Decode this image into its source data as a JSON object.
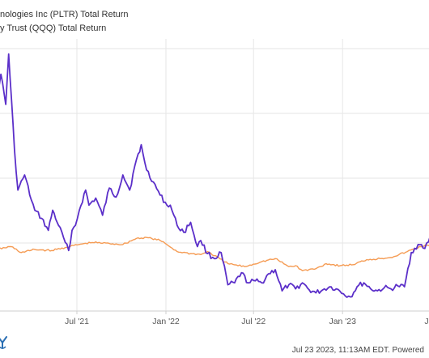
{
  "legend": [
    {
      "text": "nologies Inc (PLTR) Total Return",
      "color": "#5b2fc9"
    },
    {
      "text": "y Trust (QQQ) Total Return",
      "color": "#f59b53"
    }
  ],
  "footer": {
    "text": "Jul 23 2023, 11:13AM EDT. Powered"
  },
  "chart_data": {
    "type": "line",
    "title": "",
    "xlabel": "",
    "ylabel": "",
    "x_ticks": [
      "Jul '21",
      "Jan '22",
      "Jul '22",
      "Jan '23",
      "Jul"
    ],
    "grid": true,
    "legend_placement": "top-left",
    "series": [
      {
        "name": "nologies Inc (PLTR) Total Return",
        "color": "#5b2fc9",
        "x": [
          "2021-01-04",
          "2021-01-25",
          "2021-02-04",
          "2021-02-10",
          "2021-02-22",
          "2021-03-01",
          "2021-03-15",
          "2021-03-29",
          "2021-04-05",
          "2021-04-19",
          "2021-05-03",
          "2021-05-12",
          "2021-05-24",
          "2021-06-07",
          "2021-06-14",
          "2021-06-21",
          "2021-06-28",
          "2021-07-06",
          "2021-07-19",
          "2021-07-26",
          "2021-08-09",
          "2021-08-23",
          "2021-09-06",
          "2021-09-20",
          "2021-10-04",
          "2021-10-18",
          "2021-11-01",
          "2021-11-08",
          "2021-11-11",
          "2021-11-22",
          "2021-12-06",
          "2021-12-20",
          "2022-01-03",
          "2022-01-10",
          "2022-01-24",
          "2022-02-07",
          "2022-02-21",
          "2022-03-07",
          "2022-03-14",
          "2022-03-28",
          "2022-04-11",
          "2022-04-25",
          "2022-05-09",
          "2022-05-23",
          "2022-06-06",
          "2022-06-20",
          "2022-07-05",
          "2022-07-18",
          "2022-08-01",
          "2022-08-15",
          "2022-08-29",
          "2022-09-12",
          "2022-09-26",
          "2022-10-10",
          "2022-10-24",
          "2022-11-07",
          "2022-11-21",
          "2022-12-05",
          "2022-12-19",
          "2023-01-03",
          "2023-01-17",
          "2023-01-31",
          "2023-02-14",
          "2023-02-28",
          "2023-03-14",
          "2023-03-28",
          "2023-04-11",
          "2023-04-25",
          "2023-05-09",
          "2023-05-23",
          "2023-06-06",
          "2023-06-20",
          "2023-07-05",
          "2023-07-21"
        ],
        "values": [
          220,
          275,
          245,
          295,
          200,
          160,
          175,
          150,
          140,
          132,
          120,
          140,
          125,
          108,
          100,
          120,
          125,
          140,
          160,
          145,
          152,
          135,
          162,
          153,
          175,
          160,
          190,
          198,
          205,
          180,
          168,
          155,
          145,
          145,
          125,
          118,
          128,
          104,
          110,
          97,
          92,
          98,
          66,
          68,
          78,
          68,
          70,
          68,
          77,
          81,
          60,
          66,
          62,
          68,
          61,
          58,
          61,
          64,
          62,
          57,
          54,
          64,
          68,
          62,
          60,
          63,
          62,
          65,
          64,
          98,
          106,
          102,
          117,
          107
        ]
      },
      {
        "name": "y Trust (QQQ) Total Return",
        "color": "#f59b53",
        "x": [
          "2021-01-04",
          "2021-02-15",
          "2021-03-08",
          "2021-04-05",
          "2021-05-10",
          "2021-06-07",
          "2021-07-05",
          "2021-08-02",
          "2021-09-06",
          "2021-10-04",
          "2021-11-01",
          "2021-11-22",
          "2021-12-20",
          "2022-01-03",
          "2022-01-24",
          "2022-02-21",
          "2022-03-14",
          "2022-03-28",
          "2022-05-09",
          "2022-06-13",
          "2022-07-18",
          "2022-08-15",
          "2022-09-12",
          "2022-09-26",
          "2022-10-10",
          "2022-11-07",
          "2022-11-28",
          "2022-12-27",
          "2023-01-23",
          "2023-02-20",
          "2023-03-20",
          "2023-04-17",
          "2023-05-15",
          "2023-06-12",
          "2023-07-21"
        ],
        "values": [
          100,
          104,
          98,
          101,
          100,
          103,
          106,
          108,
          107,
          106,
          112,
          113,
          110,
          106,
          99,
          97,
          96,
          99,
          87,
          84,
          89,
          92,
          84,
          85,
          80,
          82,
          87,
          85,
          86,
          91,
          92,
          94,
          99,
          104,
          108
        ]
      }
    ]
  }
}
